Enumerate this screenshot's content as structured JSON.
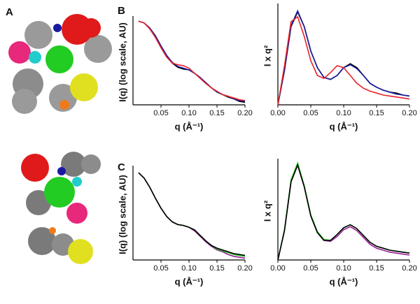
{
  "panel_labels": [
    "A",
    "B",
    "C"
  ],
  "chart_data": [
    {
      "type": "line",
      "x_label": "q (Å⁻¹)",
      "y_label": "I(q) (log scale, AU)",
      "x": [
        0.01,
        0.02,
        0.03,
        0.04,
        0.05,
        0.06,
        0.07,
        0.08,
        0.09,
        0.1,
        0.11,
        0.12,
        0.13,
        0.14,
        0.15,
        0.16,
        0.17,
        0.18,
        0.19,
        0.2
      ],
      "xlim": [
        0,
        0.2
      ],
      "xticks": [
        0.05,
        {
          "value": 0.1,
          "label": "0.10"
        },
        0.15,
        {
          "value": 0.2,
          "label": "0.20"
        }
      ],
      "ylim": [
        0,
        1
      ],
      "series": [
        {
          "color": "#000000",
          "values": [
            0.98,
            0.96,
            0.9,
            0.81,
            0.69,
            0.58,
            0.49,
            0.44,
            0.42,
            0.41,
            0.37,
            0.32,
            0.26,
            0.2,
            0.15,
            0.12,
            0.09,
            0.07,
            0.04,
            0.03
          ]
        },
        {
          "color": "#1a1aa0",
          "values": [
            0.98,
            0.96,
            0.9,
            0.81,
            0.69,
            0.58,
            0.5,
            0.45,
            0.43,
            0.41,
            0.37,
            0.32,
            0.26,
            0.2,
            0.15,
            0.12,
            0.1,
            0.07,
            0.05,
            0.04
          ]
        },
        {
          "color": "#e8232a",
          "values": [
            0.98,
            0.96,
            0.89,
            0.79,
            0.67,
            0.56,
            0.49,
            0.47,
            0.46,
            0.43,
            0.37,
            0.31,
            0.25,
            0.2,
            0.16,
            0.12,
            0.1,
            0.08,
            0.06,
            0.05
          ]
        }
      ]
    },
    {
      "type": "line",
      "x_label": "q (Å⁻¹)",
      "y_label": "I x q²",
      "x": [
        0,
        0.01,
        0.02,
        0.03,
        0.04,
        0.05,
        0.06,
        0.07,
        0.08,
        0.09,
        0.1,
        0.11,
        0.12,
        0.13,
        0.14,
        0.15,
        0.16,
        0.17,
        0.18,
        0.19,
        0.2
      ],
      "xlim": [
        0,
        0.2
      ],
      "xticks": [
        {
          "value": 0,
          "label": "0.00"
        },
        0.05,
        {
          "value": 0.1,
          "label": "0.10"
        },
        0.15,
        {
          "value": 0.2,
          "label": "0.20"
        }
      ],
      "ylim": [
        0,
        1
      ],
      "series": [
        {
          "color": "#000000",
          "values": [
            0,
            0.35,
            0.8,
            0.95,
            0.8,
            0.55,
            0.38,
            0.28,
            0.26,
            0.3,
            0.38,
            0.42,
            0.38,
            0.3,
            0.22,
            0.18,
            0.15,
            0.13,
            0.12,
            0.1,
            0.09
          ]
        },
        {
          "color": "#1a1aa0",
          "values": [
            0,
            0.36,
            0.81,
            0.96,
            0.8,
            0.55,
            0.38,
            0.28,
            0.26,
            0.3,
            0.38,
            0.41,
            0.37,
            0.3,
            0.22,
            0.18,
            0.15,
            0.13,
            0.11,
            0.1,
            0.09
          ]
        },
        {
          "color": "#e8232a",
          "values": [
            0,
            0.4,
            0.85,
            0.9,
            0.7,
            0.45,
            0.3,
            0.27,
            0.33,
            0.4,
            0.38,
            0.3,
            0.22,
            0.17,
            0.14,
            0.12,
            0.1,
            0.09,
            0.08,
            0.07,
            0.06
          ]
        }
      ]
    },
    {
      "type": "line",
      "x_label": "q (Å⁻¹)",
      "y_label": "I(q) (log scale, AU)",
      "x": [
        0.01,
        0.02,
        0.03,
        0.04,
        0.05,
        0.06,
        0.07,
        0.08,
        0.09,
        0.1,
        0.11,
        0.12,
        0.13,
        0.14,
        0.15,
        0.16,
        0.17,
        0.18,
        0.19,
        0.2
      ],
      "xlim": [
        0,
        0.2
      ],
      "xticks": [
        0.05,
        {
          "value": 0.1,
          "label": "0.10"
        },
        0.15,
        {
          "value": 0.2,
          "label": "0.20"
        }
      ],
      "ylim": [
        0,
        1
      ],
      "series": [
        {
          "color": "#9a1f9a",
          "values": [
            0.96,
            0.9,
            0.8,
            0.68,
            0.57,
            0.48,
            0.42,
            0.39,
            0.38,
            0.36,
            0.32,
            0.26,
            0.2,
            0.15,
            0.11,
            0.09,
            0.06,
            0.04,
            0.03,
            0.02
          ]
        },
        {
          "color": "#22cc22",
          "values": [
            0.96,
            0.9,
            0.8,
            0.68,
            0.57,
            0.48,
            0.42,
            0.39,
            0.38,
            0.36,
            0.33,
            0.27,
            0.21,
            0.16,
            0.12,
            0.1,
            0.08,
            0.06,
            0.05,
            0.04
          ]
        },
        {
          "color": "#000000",
          "values": [
            0.96,
            0.9,
            0.8,
            0.68,
            0.57,
            0.48,
            0.42,
            0.39,
            0.38,
            0.36,
            0.33,
            0.27,
            0.21,
            0.16,
            0.13,
            0.11,
            0.09,
            0.07,
            0.06,
            0.05
          ]
        }
      ]
    },
    {
      "type": "line",
      "x_label": "q (Å⁻¹)",
      "y_label": "I x q²",
      "x": [
        0,
        0.01,
        0.02,
        0.03,
        0.04,
        0.05,
        0.06,
        0.07,
        0.08,
        0.09,
        0.1,
        0.11,
        0.12,
        0.13,
        0.14,
        0.15,
        0.16,
        0.17,
        0.18,
        0.19,
        0.2
      ],
      "xlim": [
        0,
        0.2
      ],
      "xticks": [
        {
          "value": 0,
          "label": "0.00"
        },
        0.05,
        {
          "value": 0.1,
          "label": "0.10"
        },
        0.15,
        {
          "value": 0.2,
          "label": "0.20"
        }
      ],
      "ylim": [
        0,
        1
      ],
      "series": [
        {
          "color": "#9a1f9a",
          "values": [
            0,
            0.3,
            0.8,
            0.97,
            0.75,
            0.45,
            0.28,
            0.2,
            0.19,
            0.24,
            0.31,
            0.34,
            0.3,
            0.23,
            0.16,
            0.12,
            0.1,
            0.08,
            0.07,
            0.06,
            0.05
          ]
        },
        {
          "color": "#22cc22",
          "values": [
            0,
            0.31,
            0.82,
            0.99,
            0.76,
            0.46,
            0.29,
            0.21,
            0.2,
            0.26,
            0.33,
            0.36,
            0.32,
            0.25,
            0.18,
            0.14,
            0.12,
            0.1,
            0.09,
            0.08,
            0.07
          ]
        },
        {
          "color": "#000000",
          "values": [
            0,
            0.3,
            0.8,
            0.97,
            0.75,
            0.45,
            0.28,
            0.2,
            0.2,
            0.26,
            0.33,
            0.36,
            0.32,
            0.25,
            0.18,
            0.14,
            0.12,
            0.1,
            0.09,
            0.08,
            0.07
          ]
        }
      ]
    }
  ]
}
